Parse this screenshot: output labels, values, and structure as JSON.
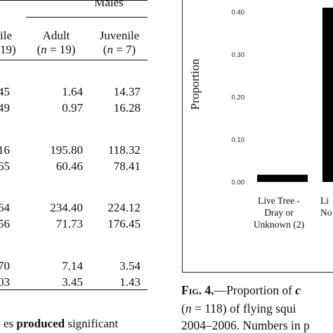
{
  "table": {
    "group_header": "Males",
    "columns": [
      {
        "line1": "ile",
        "line2": "19)"
      },
      {
        "line1": "Adult",
        "line2_open": "(",
        "line2_var": "n",
        "line2_rest": " = 19)"
      },
      {
        "line1": "Juvenile",
        "line2_open": "(",
        "line2_var": "n",
        "line2_rest": " = 7)"
      }
    ],
    "rows": [
      [
        "45",
        "1.64",
        "14.37"
      ],
      [
        "49",
        "0.97",
        "16.28"
      ],
      [
        "16",
        "195.80",
        "118.32"
      ],
      [
        "65",
        "60.46",
        "78.41"
      ],
      [
        "64",
        "234.40",
        "224.12"
      ],
      [
        "56",
        "71.73",
        "176.45"
      ],
      [
        "70",
        "7.14",
        "3.54"
      ],
      [
        "03",
        "3.45",
        "1.43"
      ]
    ],
    "footer_text_plain": "es ",
    "footer_text_bold": "produced",
    "footer_text_rest": " significant"
  },
  "figure": {
    "y_axis_label": "Proportion",
    "y_ticks": [
      "0.40",
      "0.30",
      "0.20",
      "0.10",
      "0.00"
    ],
    "categories": [
      {
        "lines": [
          "Live Tree -",
          "Dray or",
          "Unknown (2)"
        ]
      },
      {
        "lines": [
          "Li",
          "No",
          ""
        ]
      }
    ],
    "caption_fig": "Fig. 4.",
    "caption_line1_rest": "—Proportion of ",
    "caption_line1_trail": "c",
    "caption_line2_open": "(",
    "caption_line2_var": "n",
    "caption_line2_rest": " = 118) of flying squi",
    "caption_line3": "2004–2006. Numbers in p"
  },
  "chart_data": {
    "type": "bar",
    "ylabel": "Proportion",
    "ylim": [
      0,
      0.45
    ],
    "categories": [
      "Live Tree - Dray or Unknown (2)",
      "Li No"
    ],
    "values": [
      0.017,
      0.41
    ],
    "colors": [
      "#000000",
      "#000000"
    ]
  }
}
